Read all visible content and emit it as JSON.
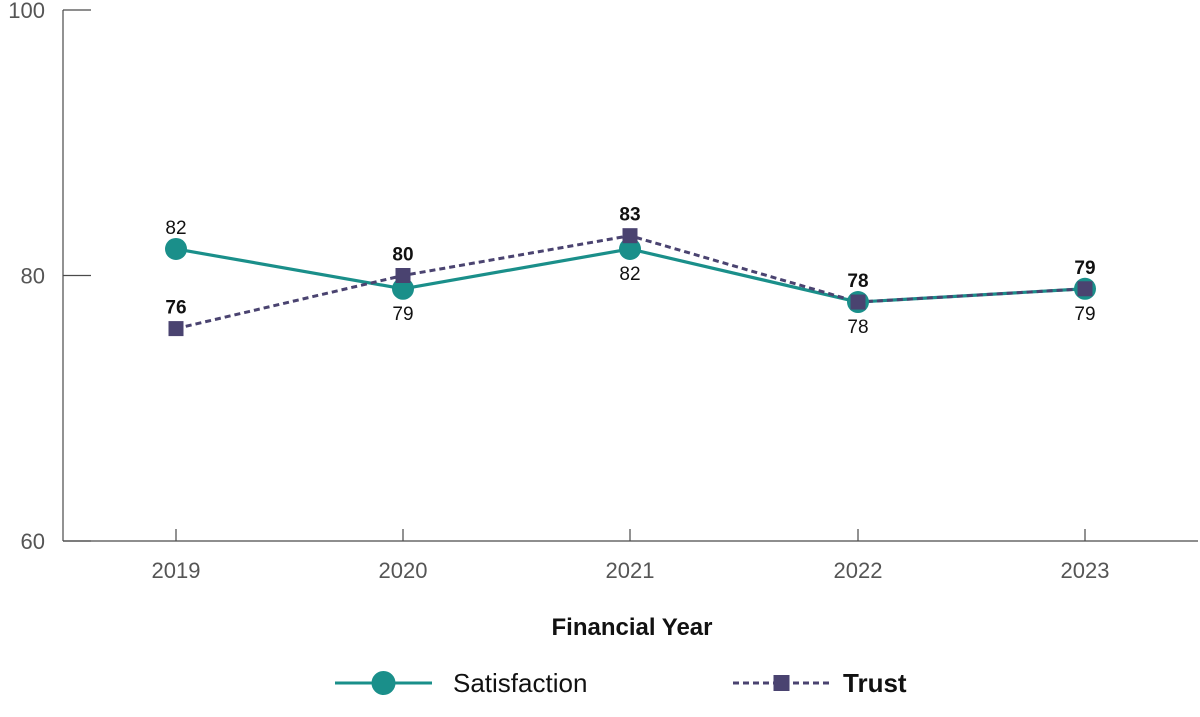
{
  "colors": {
    "satisfaction": "#1a8f8a",
    "trust": "#4a4370",
    "axis": "#4a4a4a"
  },
  "chart_data": {
    "type": "line",
    "categories": [
      "2019",
      "2020",
      "2021",
      "2022",
      "2023"
    ],
    "xlabel": "Financial Year",
    "ylabel": "",
    "ylim": [
      60,
      100
    ],
    "yticks": [
      "60",
      "80",
      "100"
    ],
    "grid": false,
    "legend_position": "bottom-center",
    "series": [
      {
        "name": "Satisfaction",
        "values": [
          82,
          79,
          82,
          78,
          79
        ],
        "labels": [
          "82",
          "79",
          "82",
          "78",
          "79"
        ],
        "line_style": "solid",
        "marker": "circle",
        "color_key": "satisfaction",
        "label_weight": "normal"
      },
      {
        "name": "Trust",
        "values": [
          76,
          80,
          83,
          78,
          79
        ],
        "labels": [
          "76",
          "80",
          "83",
          "78",
          "79"
        ],
        "line_style": "dashed",
        "marker": "square",
        "color_key": "trust",
        "label_weight": "bold"
      }
    ]
  }
}
